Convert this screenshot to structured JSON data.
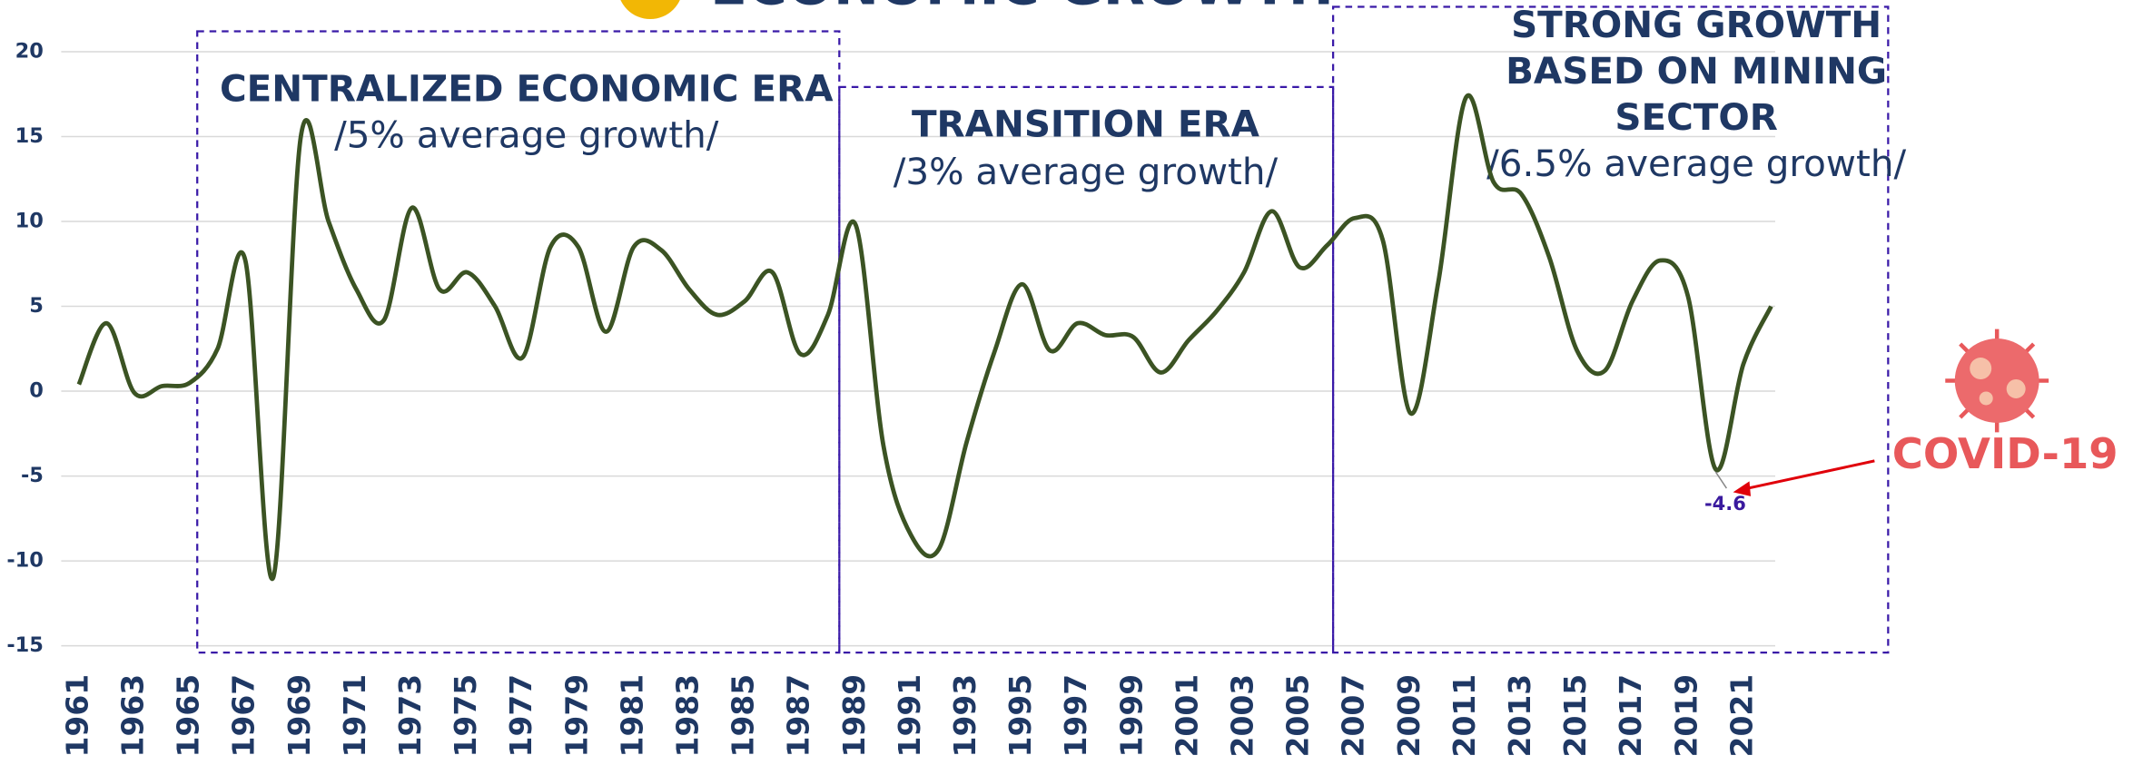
{
  "chart_data": {
    "type": "line",
    "title": "ECONOMIC GROWTH",
    "x": [
      1961,
      1962,
      1963,
      1964,
      1965,
      1966,
      1967,
      1968,
      1969,
      1970,
      1971,
      1972,
      1973,
      1974,
      1975,
      1976,
      1977,
      1978,
      1979,
      1980,
      1981,
      1982,
      1983,
      1984,
      1985,
      1986,
      1987,
      1988,
      1989,
      1990,
      1991,
      1992,
      1993,
      1994,
      1995,
      1996,
      1997,
      1998,
      1999,
      2000,
      2001,
      2002,
      2003,
      2004,
      2005,
      2006,
      2007,
      2008,
      2009,
      2010,
      2011,
      2012,
      2013,
      2014,
      2015,
      2016,
      2017,
      2018,
      2019,
      2020,
      2021,
      2022
    ],
    "values": [
      0.4,
      4.0,
      -0.1,
      0.3,
      0.5,
      2.5,
      7.7,
      -11,
      15,
      10,
      6,
      4.2,
      10.8,
      6,
      7,
      5,
      2,
      8.5,
      8.5,
      3.5,
      8.5,
      8.3,
      6,
      4.5,
      5.3,
      7,
      2.2,
      4.5,
      9.8,
      -3.2,
      -8.5,
      -9.3,
      -3,
      2.3,
      6.3,
      2.4,
      4,
      3.3,
      3.2,
      1.1,
      3,
      4.7,
      7,
      10.6,
      7.3,
      8.6,
      10.2,
      8.9,
      -1.3,
      6.4,
      17.3,
      12.3,
      11.6,
      7.9,
      2.4,
      1.2,
      5.3,
      7.7,
      5.6,
      -4.6,
      1.6,
      5.0
    ],
    "color": "#3b5323",
    "xlim": [
      1961,
      2022
    ],
    "xticks": [
      1961,
      1963,
      1965,
      1967,
      1969,
      1971,
      1973,
      1975,
      1977,
      1979,
      1981,
      1983,
      1985,
      1987,
      1989,
      1991,
      1993,
      1995,
      1997,
      1999,
      2001,
      2003,
      2005,
      2007,
      2009,
      2011,
      2013,
      2015,
      2017,
      2019,
      2021
    ],
    "ylim": [
      -15,
      20
    ],
    "yticks": [
      -15,
      -10,
      -5,
      0,
      5,
      10,
      15,
      20
    ],
    "grid": true,
    "eras": [
      {
        "title_lines": [
          "CENTRALIZED ECONOMIC ERA"
        ],
        "subtitle": "/5% average growth/"
      },
      {
        "title_lines": [
          "TRANSITION ERA"
        ],
        "subtitle": "/3% average growth/"
      },
      {
        "title_lines": [
          "STRONG GROWTH",
          "BASED ON MINING",
          "SECTOR"
        ],
        "subtitle": "/6.5% average growth/"
      }
    ],
    "covid": {
      "text": "COVID-19",
      "x": 2020
    }
  }
}
